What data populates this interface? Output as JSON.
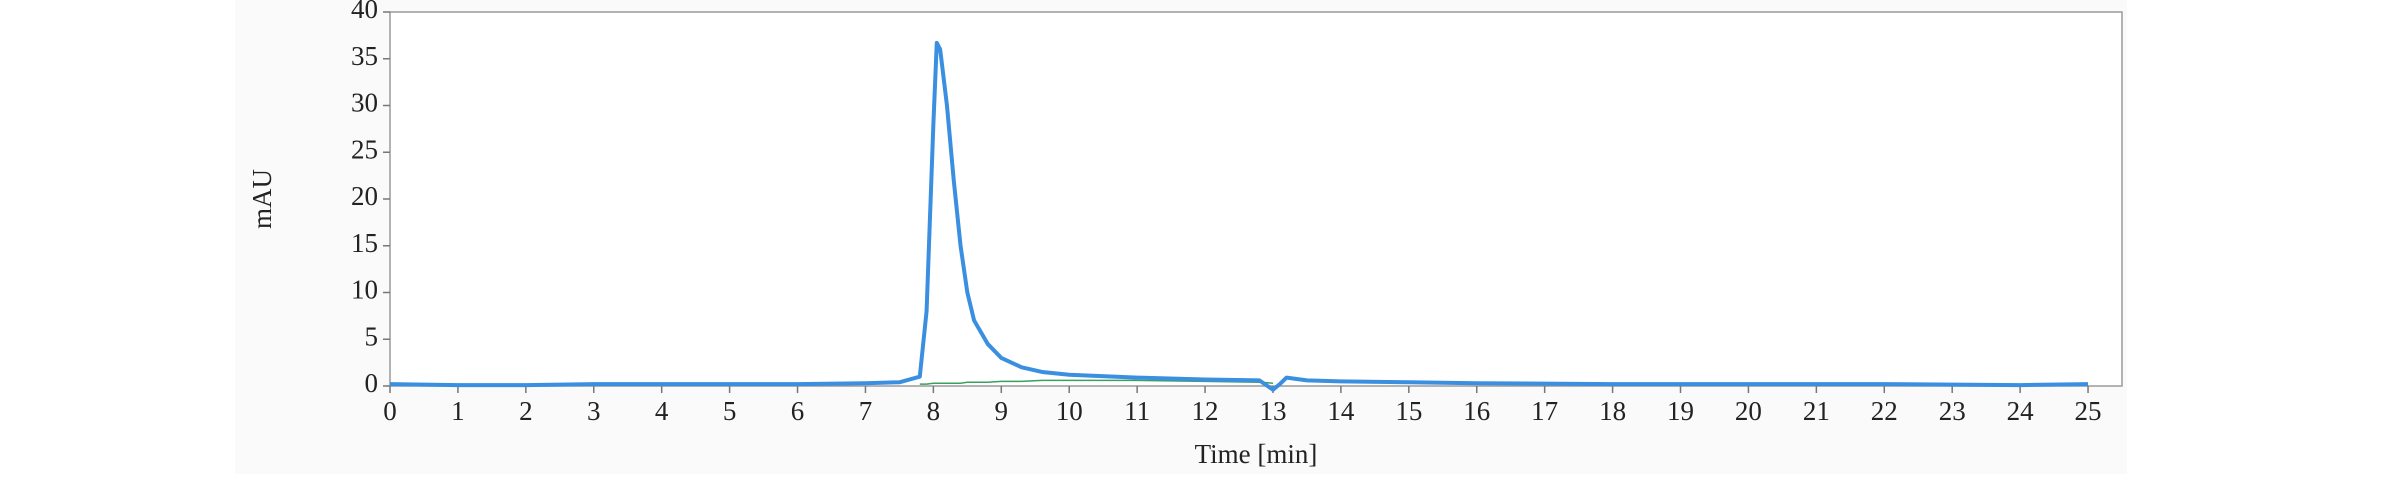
{
  "chart_data": {
    "type": "line",
    "x_label": "Time [min]",
    "y_label": "mAU",
    "x": [
      0,
      1,
      2,
      3,
      4,
      5,
      6,
      7,
      7.5,
      7.8,
      7.9,
      8.0,
      8.05,
      8.1,
      8.2,
      8.3,
      8.4,
      8.5,
      8.6,
      8.8,
      9.0,
      9.3,
      9.6,
      10,
      11,
      12,
      12.8,
      13.0,
      13.1,
      13.2,
      13.5,
      14,
      15,
      16,
      18,
      20,
      22,
      24,
      25
    ],
    "series": [
      {
        "color": "#3a8fe0",
        "values": [
          0.2,
          0.1,
          0.1,
          0.2,
          0.2,
          0.2,
          0.2,
          0.3,
          0.4,
          1,
          8,
          28,
          36.7,
          36,
          30,
          22,
          15,
          10,
          7,
          4.5,
          3,
          2,
          1.5,
          1.2,
          0.9,
          0.7,
          0.6,
          -0.4,
          0.2,
          0.9,
          0.6,
          0.5,
          0.4,
          0.3,
          0.2,
          0.2,
          0.2,
          0.1,
          0.2
        ]
      },
      {
        "color": "#3aa060",
        "values": [
          null,
          null,
          null,
          null,
          null,
          null,
          null,
          null,
          null,
          0.2,
          0.2,
          0.3,
          0.3,
          0.3,
          0.3,
          0.3,
          0.3,
          0.4,
          0.4,
          0.4,
          0.5,
          0.5,
          0.6,
          0.6,
          0.6,
          0.5,
          0.4,
          0.3,
          null,
          null,
          null,
          null,
          null,
          null,
          null,
          null,
          null,
          null,
          null
        ]
      }
    ],
    "xlim": [
      0,
      25.5
    ],
    "ylim": [
      0,
      40
    ],
    "xticks": [
      0,
      1,
      2,
      3,
      4,
      5,
      6,
      7,
      8,
      9,
      10,
      11,
      12,
      13,
      14,
      15,
      16,
      17,
      18,
      19,
      20,
      21,
      22,
      23,
      24,
      25
    ],
    "yticks": [
      0,
      5,
      10,
      15,
      20,
      25,
      30,
      35,
      40
    ]
  }
}
